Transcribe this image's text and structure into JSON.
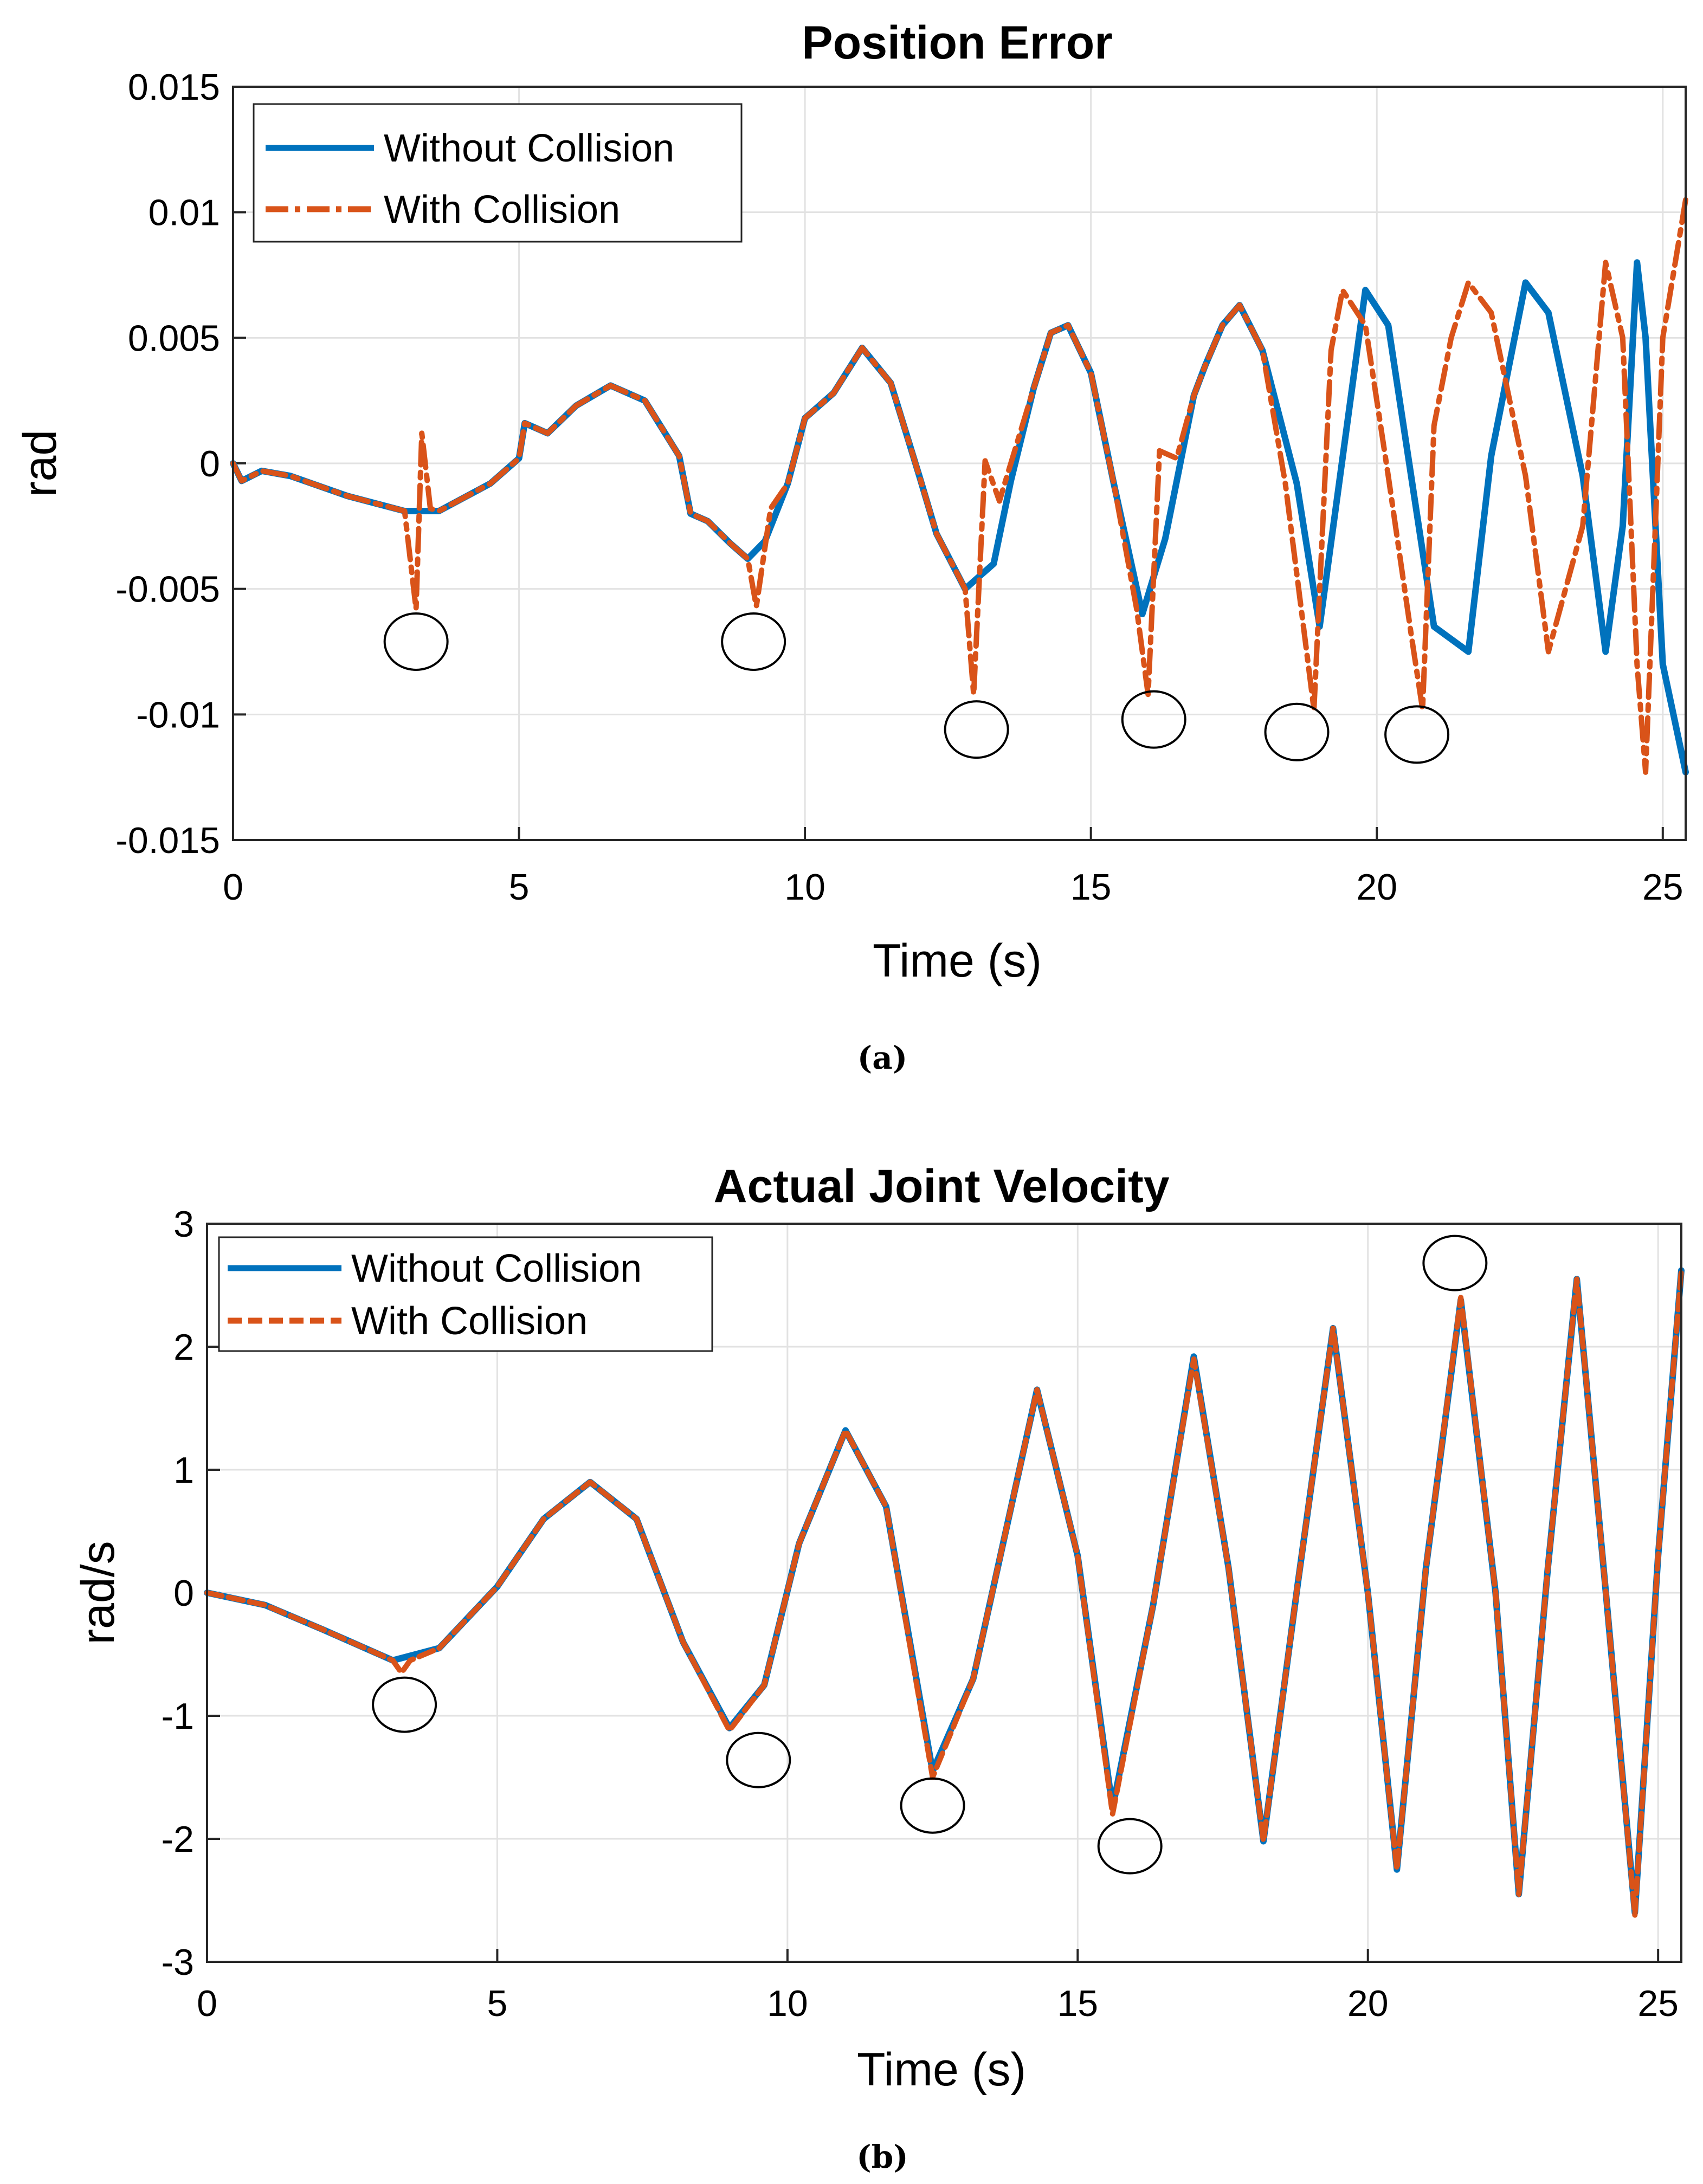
{
  "chart_data": [
    {
      "type": "line",
      "title": "Position Error",
      "xlabel": "Time (s)",
      "ylabel": "rad",
      "xlim": [
        0,
        25.4
      ],
      "ylim": [
        -0.015,
        0.015
      ],
      "xticks": [
        0,
        5,
        10,
        15,
        20,
        25
      ],
      "xtick_labels": [
        "0",
        "5",
        "10",
        "15",
        "20",
        "25"
      ],
      "yticks": [
        0.015,
        0.01,
        0.005,
        0,
        -0.005,
        -0.01,
        -0.015
      ],
      "ytick_labels": [
        "0.015",
        "0.01",
        "0.005",
        "0",
        "-0.005",
        "-0.01",
        "-0.015"
      ],
      "grid": true,
      "legend_position": "top-left",
      "caption": "(a)",
      "series": [
        {
          "name": "Without Collision",
          "color": "#0072BD",
          "style": "solid",
          "x": [
            0,
            0.15,
            0.5,
            1,
            2,
            3,
            3.6,
            4.5,
            5,
            5.1,
            5.5,
            6,
            6.6,
            7.2,
            7.8,
            8.0,
            8.3,
            8.7,
            9.0,
            9.3,
            9.7,
            10.0,
            10.2,
            10.5,
            11.0,
            11.5,
            12.0,
            12.3,
            12.8,
            13.3,
            13.6,
            14.0,
            14.3,
            14.6,
            15.0,
            15.4,
            15.9,
            16.3,
            16.8,
            17.0,
            17.3,
            17.6,
            18.0,
            18.6,
            19.0,
            19.4,
            19.8,
            20.2,
            20.6,
            21.0,
            21.6,
            22.0,
            22.6,
            23.0,
            23.6,
            24.0,
            24.3,
            24.55,
            24.7,
            25.0,
            25.4
          ],
          "values": [
            0,
            -0.0007,
            -0.0003,
            -0.0005,
            -0.0013,
            -0.0019,
            -0.0019,
            -0.0008,
            0.0002,
            0.0016,
            0.0012,
            0.0023,
            0.0031,
            0.0025,
            0.0003,
            -0.002,
            -0.0023,
            -0.0032,
            -0.0038,
            -0.0031,
            -0.0008,
            0.0018,
            0.0022,
            0.0028,
            0.0046,
            0.0032,
            -0.0005,
            -0.0028,
            -0.005,
            -0.004,
            -0.0007,
            0.003,
            0.0052,
            0.0055,
            0.0036,
            -0.0008,
            -0.006,
            -0.003,
            0.0027,
            0.0039,
            0.0055,
            0.0063,
            0.0045,
            -0.0008,
            -0.0065,
            0.0002,
            0.0069,
            0.0055,
            -0.0005,
            -0.0065,
            -0.0075,
            0.0003,
            0.0072,
            0.006,
            -0.0005,
            -0.0075,
            -0.0025,
            0.008,
            0.005,
            -0.008,
            -0.0123
          ]
        },
        {
          "name": "With Collision",
          "color": "#D95319",
          "style": "dash-dot",
          "x": [
            0,
            0.15,
            0.5,
            1,
            2,
            3,
            3.2,
            3.3,
            3.45,
            3.6,
            4.5,
            5,
            5.1,
            5.5,
            6,
            6.6,
            7.2,
            7.8,
            8.0,
            8.3,
            8.7,
            9.0,
            9.15,
            9.4,
            9.7,
            10.0,
            10.2,
            10.5,
            11.0,
            11.5,
            12.0,
            12.3,
            12.8,
            12.95,
            13.15,
            13.4,
            14.0,
            14.3,
            14.6,
            15.0,
            15.4,
            15.8,
            16.0,
            16.2,
            16.5,
            16.8,
            17.0,
            17.3,
            17.6,
            18.0,
            18.4,
            18.7,
            18.9,
            19.2,
            19.4,
            19.8,
            20.2,
            20.6,
            20.8,
            21.0,
            21.3,
            21.6,
            22.0,
            22.6,
            23.0,
            23.6,
            24.0,
            24.3,
            24.55,
            24.7,
            25.0,
            25.4
          ],
          "values": [
            0,
            -0.0007,
            -0.0003,
            -0.0005,
            -0.0013,
            -0.0019,
            -0.0058,
            0.0012,
            -0.0018,
            -0.0019,
            -0.0008,
            0.0002,
            0.0016,
            0.0012,
            0.0023,
            0.0031,
            0.0025,
            0.0003,
            -0.002,
            -0.0023,
            -0.0032,
            -0.0038,
            -0.0057,
            -0.0018,
            -0.0008,
            0.0018,
            0.0022,
            0.0028,
            0.0046,
            0.0032,
            -0.0005,
            -0.0028,
            -0.005,
            -0.0092,
            0.0001,
            -0.0015,
            0.003,
            0.0052,
            0.0055,
            0.0036,
            -0.0008,
            -0.0058,
            -0.0092,
            0.0005,
            0.0002,
            0.0027,
            0.0039,
            0.0055,
            0.0063,
            0.0045,
            -0.0008,
            -0.0062,
            -0.0098,
            0.0045,
            0.0069,
            0.0055,
            -0.0005,
            -0.0068,
            -0.0098,
            0.0015,
            0.005,
            0.0072,
            0.006,
            -0.0005,
            -0.0075,
            -0.0025,
            0.008,
            0.005,
            -0.008,
            -0.0123,
            0.005,
            0.0105
          ]
        }
      ],
      "annotations": {
        "type": "circle-markers",
        "points": [
          {
            "x": 3.2,
            "y": -0.0071
          },
          {
            "x": 9.1,
            "y": -0.0071
          },
          {
            "x": 13.0,
            "y": -0.0106
          },
          {
            "x": 16.1,
            "y": -0.0102
          },
          {
            "x": 18.6,
            "y": -0.0107
          },
          {
            "x": 20.7,
            "y": -0.0108
          }
        ]
      }
    },
    {
      "type": "line",
      "title": "Actual Joint Velocity",
      "xlabel": "Time (s)",
      "ylabel": "rad/s",
      "xlim": [
        0,
        25.4
      ],
      "ylim": [
        -3,
        3
      ],
      "xticks": [
        0,
        5,
        10,
        15,
        20,
        25
      ],
      "xtick_labels": [
        "0",
        "5",
        "10",
        "15",
        "20",
        "25"
      ],
      "yticks": [
        3,
        2,
        1,
        0,
        -1,
        -2,
        -3
      ],
      "ytick_labels": [
        "3",
        "2",
        "1",
        "0",
        "-1",
        "-2",
        "-3"
      ],
      "grid": true,
      "legend_position": "top-left",
      "caption": "(b)",
      "series": [
        {
          "name": "Without Collision",
          "color": "#0072BD",
          "style": "solid",
          "x": [
            0,
            1,
            2,
            3.2,
            4,
            5,
            5.8,
            6.6,
            7.4,
            8.2,
            9.0,
            9.6,
            10.2,
            11.0,
            11.7,
            12.5,
            13.2,
            14.3,
            15.0,
            15.6,
            16.3,
            17.0,
            17.6,
            18.2,
            18.8,
            19.4,
            20.0,
            20.5,
            21.0,
            21.6,
            22.2,
            22.6,
            23.1,
            23.6,
            24.1,
            24.6,
            25.0,
            25.4
          ],
          "values": [
            0,
            -0.1,
            -0.3,
            -0.55,
            -0.45,
            0.05,
            0.6,
            0.9,
            0.6,
            -0.4,
            -1.1,
            -0.75,
            0.4,
            1.32,
            0.7,
            -1.45,
            -0.7,
            1.65,
            0.3,
            -1.75,
            -0.1,
            1.92,
            0.2,
            -2.02,
            0.1,
            2.15,
            0.0,
            -2.25,
            0.2,
            2.38,
            0.0,
            -2.45,
            0.2,
            2.55,
            0.0,
            -2.6,
            0.3,
            2.62
          ]
        },
        {
          "name": "With Collision",
          "color": "#D95319",
          "style": "dashed",
          "x": [
            0,
            1,
            2,
            3.2,
            3.35,
            3.5,
            4,
            5,
            5.8,
            6.6,
            7.4,
            8.2,
            9.0,
            9.6,
            10.2,
            11.0,
            11.7,
            12.5,
            13.2,
            14.3,
            15.0,
            15.6,
            16.3,
            17.0,
            17.6,
            18.2,
            18.8,
            19.4,
            20.0,
            20.5,
            21.0,
            21.6,
            22.2,
            22.6,
            23.1,
            23.6,
            24.1,
            24.6,
            25.0,
            25.4
          ],
          "values": [
            0,
            -0.1,
            -0.3,
            -0.55,
            -0.65,
            -0.55,
            -0.45,
            0.05,
            0.6,
            0.9,
            0.6,
            -0.4,
            -1.12,
            -0.75,
            0.4,
            1.32,
            0.7,
            -1.5,
            -0.7,
            1.65,
            0.3,
            -1.8,
            -0.1,
            1.9,
            0.2,
            -2.02,
            0.1,
            2.15,
            0.0,
            -2.25,
            0.2,
            2.4,
            0.0,
            -2.45,
            0.2,
            2.55,
            0.0,
            -2.62,
            0.3,
            2.62
          ]
        }
      ],
      "annotations": {
        "type": "circle-markers",
        "points": [
          {
            "x": 3.4,
            "y": -0.91
          },
          {
            "x": 9.5,
            "y": -1.36
          },
          {
            "x": 12.5,
            "y": -1.73
          },
          {
            "x": 15.9,
            "y": -2.06
          },
          {
            "x": 21.5,
            "y": 2.68
          }
        ]
      }
    }
  ]
}
